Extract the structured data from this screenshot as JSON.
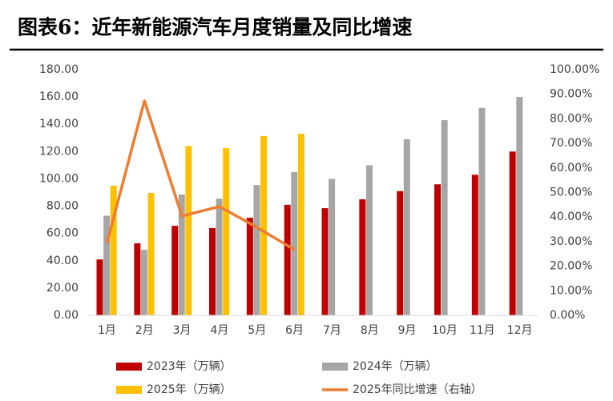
{
  "chart_data": {
    "type": "bar-line",
    "title": "图表6：近年新能源汽车月度销量及同比增速",
    "categories": [
      "1月",
      "2月",
      "3月",
      "4月",
      "5月",
      "6月",
      "7月",
      "8月",
      "9月",
      "10月",
      "11月",
      "12月"
    ],
    "series": [
      {
        "name": "2023年（万辆）",
        "color": "#c00000",
        "type": "bar",
        "values": [
          41,
          52.8,
          65.6,
          64,
          71.5,
          81,
          78.5,
          85,
          91,
          96,
          103,
          120
        ]
      },
      {
        "name": "2024年（万辆）",
        "color": "#a6a6a6",
        "type": "bar",
        "values": [
          73,
          48,
          88.5,
          85.5,
          95.5,
          105,
          100,
          110,
          129,
          143,
          152,
          160
        ]
      },
      {
        "name": "2025年（万辆）",
        "color": "#ffc000",
        "type": "bar",
        "values": [
          95,
          89.7,
          124,
          122.5,
          131.4,
          133,
          null,
          null,
          null,
          null,
          null,
          null
        ]
      },
      {
        "name": "2025年同比增速（右轴）",
        "color": "#ed7d31",
        "type": "line",
        "axis": "y2",
        "values": [
          29.3,
          87.3,
          40.4,
          44.3,
          35.8,
          26.7,
          null,
          null,
          null,
          null,
          null,
          null
        ]
      }
    ],
    "ylim": [
      0,
      180
    ],
    "yticks": [
      {
        "value": 0,
        "label": "0.00"
      },
      {
        "value": 20,
        "label": "20.00"
      },
      {
        "value": 40,
        "label": "40.00"
      },
      {
        "value": 60,
        "label": "60.00"
      },
      {
        "value": 80,
        "label": "80.00"
      },
      {
        "value": 100,
        "label": "100.00"
      },
      {
        "value": 120,
        "label": "120.00"
      },
      {
        "value": 140,
        "label": "140.00"
      },
      {
        "value": 160,
        "label": "160.00"
      },
      {
        "value": 180,
        "label": "180.00"
      }
    ],
    "y2lim": [
      0,
      100
    ],
    "y2ticks": [
      {
        "value": 0,
        "label": "0.00%"
      },
      {
        "value": 10,
        "label": "10.00%"
      },
      {
        "value": 20,
        "label": "20.00%"
      },
      {
        "value": 30,
        "label": "30.00%"
      },
      {
        "value": 40,
        "label": "40.00%"
      },
      {
        "value": 50,
        "label": "50.00%"
      },
      {
        "value": 60,
        "label": "60.00%"
      },
      {
        "value": 70,
        "label": "70.00%"
      },
      {
        "value": 80,
        "label": "80.00%"
      },
      {
        "value": 90,
        "label": "90.00%"
      },
      {
        "value": 100,
        "label": "100.00%"
      }
    ],
    "grid": false,
    "legend": "bottom"
  }
}
